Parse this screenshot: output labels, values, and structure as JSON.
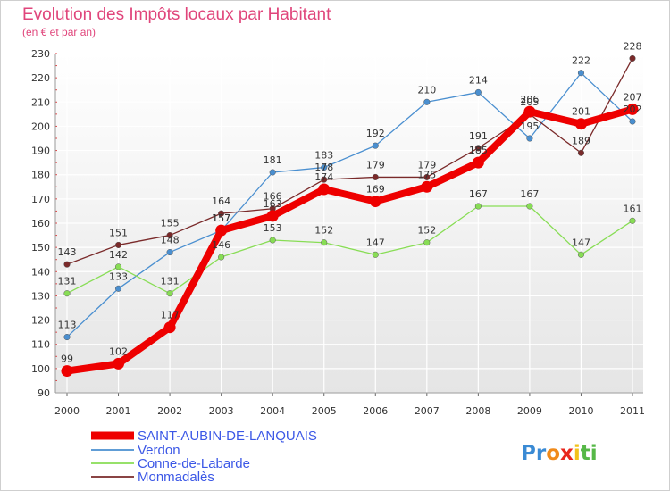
{
  "chart_data": {
    "type": "line",
    "title": "Evolution des Impôts locaux par Habitant",
    "subtitle": "(en € et par an)",
    "categories": [
      "2000",
      "2001",
      "2002",
      "2003",
      "2004",
      "2005",
      "2006",
      "2007",
      "2008",
      "2009",
      "2010",
      "2011"
    ],
    "ylim": [
      90,
      230
    ],
    "yticks": [
      90,
      100,
      110,
      120,
      130,
      140,
      150,
      160,
      170,
      180,
      190,
      200,
      210,
      220,
      230
    ],
    "grid": true,
    "series": [
      {
        "name": "SAINT-AUBIN-DE-LANQUAIS",
        "color": "#ee0000",
        "values": [
          99,
          102,
          117,
          157,
          163,
          174,
          169,
          175,
          185,
          206,
          201,
          207
        ],
        "labels": [
          "99",
          "102",
          "117",
          "157",
          "163",
          "174",
          "169",
          "175",
          "185",
          "206",
          "201",
          "207"
        ]
      },
      {
        "name": "Verdon",
        "color": "#4a8fd0",
        "values": [
          113,
          133,
          148,
          157,
          181,
          183,
          192,
          210,
          214,
          195,
          222,
          202
        ],
        "labels": [
          "113",
          "133",
          "148",
          "157",
          "181",
          "183",
          "192",
          "210",
          "214",
          "195",
          "222",
          "202"
        ]
      },
      {
        "name": "Conne-de-Labarde",
        "color": "#88dd55",
        "values": [
          131,
          142,
          131,
          146,
          153,
          152,
          147,
          152,
          167,
          167,
          147,
          161
        ],
        "labels": [
          "131",
          "142",
          "131",
          "146",
          "153",
          "152",
          "147",
          "152",
          "167",
          "167",
          "147",
          "161"
        ]
      },
      {
        "name": "Monmadalès",
        "color": "#7a2a2a",
        "values": [
          143,
          151,
          155,
          164,
          166,
          178,
          179,
          179,
          191,
          205,
          189,
          228
        ],
        "labels": [
          "143",
          "151",
          "155",
          "164",
          "166",
          "178",
          "179",
          "179",
          "191",
          "205",
          "189",
          "228"
        ]
      }
    ]
  },
  "logo": {
    "letters": [
      "P",
      "r",
      "o",
      "x",
      "i",
      "t",
      "i"
    ],
    "colors": [
      "#3a8ad4",
      "#3a8ad4",
      "#f08a1a",
      "#e8261c",
      "#f2c21a",
      "#56b847",
      "#56b847"
    ]
  }
}
